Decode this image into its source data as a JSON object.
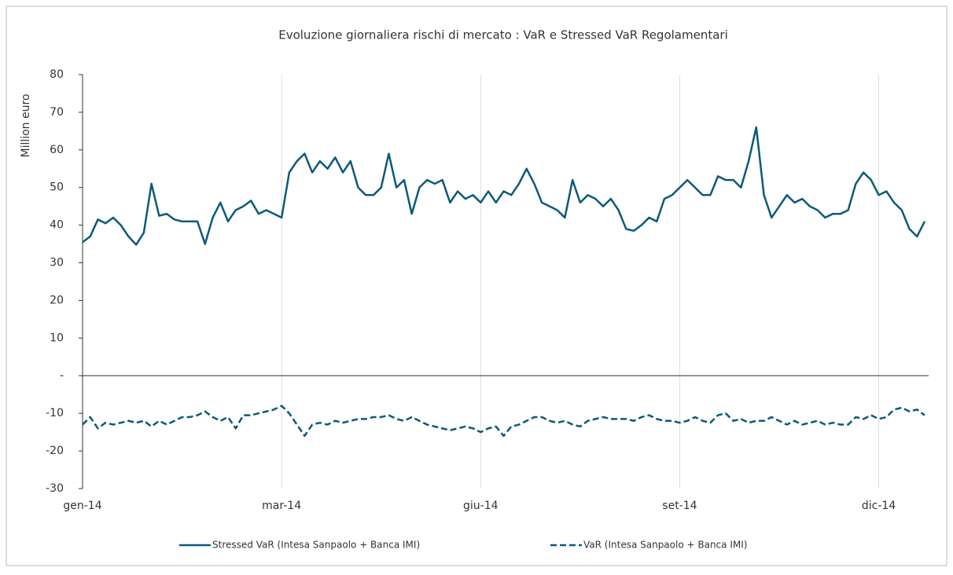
{
  "chart_data": {
    "type": "line",
    "title": "Evoluzione giornaliera rischi di mercato : VaR e Stressed VaR Regolamentari",
    "y_label": "Million euro",
    "categories": [
      "gen-14",
      null,
      null,
      null,
      null,
      null,
      null,
      null,
      null,
      null,
      null,
      null,
      null,
      null,
      null,
      null,
      null,
      null,
      null,
      null,
      null,
      null,
      null,
      null,
      null,
      null,
      "mar-14",
      null,
      null,
      null,
      null,
      null,
      null,
      null,
      null,
      null,
      null,
      null,
      null,
      null,
      null,
      null,
      null,
      null,
      null,
      null,
      null,
      null,
      null,
      null,
      null,
      null,
      "giu-14",
      null,
      null,
      null,
      null,
      null,
      null,
      null,
      null,
      null,
      null,
      null,
      null,
      null,
      null,
      null,
      null,
      null,
      null,
      null,
      null,
      null,
      null,
      null,
      null,
      null,
      "set-14",
      null,
      null,
      null,
      null,
      null,
      null,
      null,
      null,
      null,
      null,
      null,
      null,
      null,
      null,
      null,
      null,
      null,
      null,
      null,
      null,
      null,
      null,
      null,
      null,
      null,
      "dic-14",
      null,
      null,
      null,
      null,
      null,
      null
    ],
    "series": [
      {
        "name": "Stressed VaR (Intesa Sanpaolo + Banca IMI)",
        "color": "#0b5a78",
        "style": "solid",
        "values": [
          35.5,
          37,
          41.5,
          40.5,
          42,
          40,
          37,
          34.8,
          38,
          51,
          42.5,
          43,
          41.5,
          41,
          41,
          41,
          35,
          42,
          46,
          41,
          44,
          45,
          46.5,
          43,
          44,
          43,
          42,
          54,
          57,
          59,
          54,
          57,
          55,
          58,
          54,
          57,
          50,
          48,
          48,
          50,
          59,
          50,
          52,
          43,
          50,
          52,
          51,
          52,
          46,
          49,
          47,
          48,
          46,
          49,
          46,
          49,
          48,
          51,
          55,
          51,
          46,
          45,
          44,
          42,
          52,
          46,
          48,
          47,
          45,
          47,
          44,
          39,
          38.5,
          40,
          42,
          41,
          47,
          48,
          50,
          52,
          50,
          48,
          48,
          53,
          52,
          52,
          50,
          57,
          66,
          48,
          42,
          45,
          48,
          46,
          47,
          45,
          44,
          42,
          43,
          43,
          44,
          51,
          54,
          52,
          48,
          49,
          46,
          44,
          39,
          37,
          41
        ]
      },
      {
        "name": "VaR (Intesa Sanpaolo + Banca IMI)",
        "color": "#0b5a78",
        "style": "dashed",
        "values": [
          -13,
          -11,
          -14,
          -12.5,
          -13,
          -12.5,
          -12,
          -12.5,
          -12,
          -13.5,
          -12,
          -13,
          -12,
          -11,
          -11,
          -10.5,
          -9.5,
          -11,
          -12,
          -11,
          -14,
          -10.5,
          -10.5,
          -10,
          -9.5,
          -9,
          -8,
          -10,
          -13,
          -16,
          -13,
          -12.5,
          -13,
          -12,
          -12.5,
          -12,
          -11.5,
          -11.5,
          -11,
          -11,
          -10.5,
          -11.5,
          -12,
          -11,
          -12,
          -13,
          -13.5,
          -14,
          -14.5,
          -14,
          -13.5,
          -14,
          -15,
          -14,
          -13.5,
          -16,
          -13.5,
          -13,
          -12,
          -11,
          -11,
          -12,
          -12.5,
          -12,
          -13,
          -13.5,
          -12,
          -11.5,
          -11,
          -11.5,
          -11.5,
          -11.5,
          -12,
          -11,
          -10.5,
          -11.5,
          -12,
          -12,
          -12.5,
          -12,
          -11,
          -12,
          -12.5,
          -10.5,
          -10,
          -12,
          -11.5,
          -12.5,
          -12,
          -12,
          -11,
          -12,
          -13,
          -12,
          -13,
          -12.5,
          -12,
          -13,
          -12.5,
          -13,
          -13,
          -11,
          -11.5,
          -10.5,
          -11.5,
          -11,
          -9,
          -8.5,
          -9.5,
          -9,
          -10.5
        ]
      }
    ],
    "ylim": [
      -30,
      80
    ],
    "yticks": [
      -30,
      -20,
      -10,
      {
        "value": 0,
        "label": "-"
      },
      10,
      20,
      30,
      40,
      50,
      60,
      70,
      80
    ],
    "grid": "x"
  }
}
